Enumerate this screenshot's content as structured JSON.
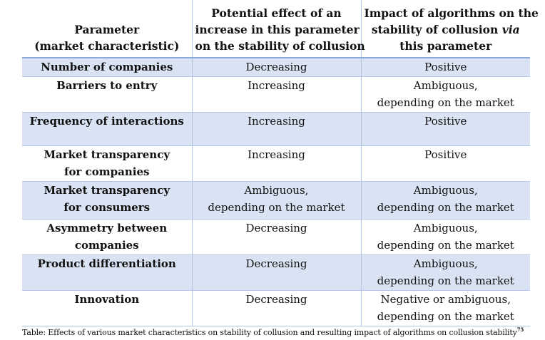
{
  "header": {
    "col1": [
      "Parameter",
      "(market characteristic)"
    ],
    "col2": [
      "Potential effect of an",
      "increase in this parameter",
      "on the stability of collusion"
    ],
    "col3_line1": "Impact of algorithms on the",
    "col3_line2_pre": "stability of collusion ",
    "col3_line2_em": "via",
    "col3_line3": "this parameter"
  },
  "rows": [
    {
      "param": [
        "Number of companies"
      ],
      "effect": [
        "Decreasing"
      ],
      "impact": [
        "Positive"
      ]
    },
    {
      "param": [
        "Barriers to entry"
      ],
      "effect": [
        "Increasing"
      ],
      "impact": [
        "Ambiguous,",
        "depending on the market"
      ]
    },
    {
      "param": [
        "Frequency of interactions"
      ],
      "effect": [
        "Increasing"
      ],
      "impact": [
        "Positive"
      ]
    },
    {
      "param": [
        "Market transparency",
        "for companies"
      ],
      "effect": [
        "Increasing"
      ],
      "impact": [
        "Positive"
      ]
    },
    {
      "param": [
        "Market transparency",
        "for consumers"
      ],
      "effect": [
        "Ambiguous,",
        "depending on the market"
      ],
      "impact": [
        "Ambiguous,",
        "depending on the market"
      ]
    },
    {
      "param": [
        "Asymmetry between",
        "companies"
      ],
      "effect": [
        "Decreasing"
      ],
      "impact": [
        "Ambiguous,",
        "depending on the market"
      ]
    },
    {
      "param": [
        "Product differentiation"
      ],
      "effect": [
        "Decreasing"
      ],
      "impact": [
        "Ambiguous,",
        "depending on the market"
      ]
    },
    {
      "param": [
        "Innovation"
      ],
      "effect": [
        "Decreasing"
      ],
      "impact": [
        "Negative or ambiguous,",
        "depending on the market"
      ]
    }
  ],
  "caption": {
    "text": "Table: Effects of various market characteristics on stability of collusion and resulting impact of algorithms on collusion stability",
    "footnote": "75"
  }
}
